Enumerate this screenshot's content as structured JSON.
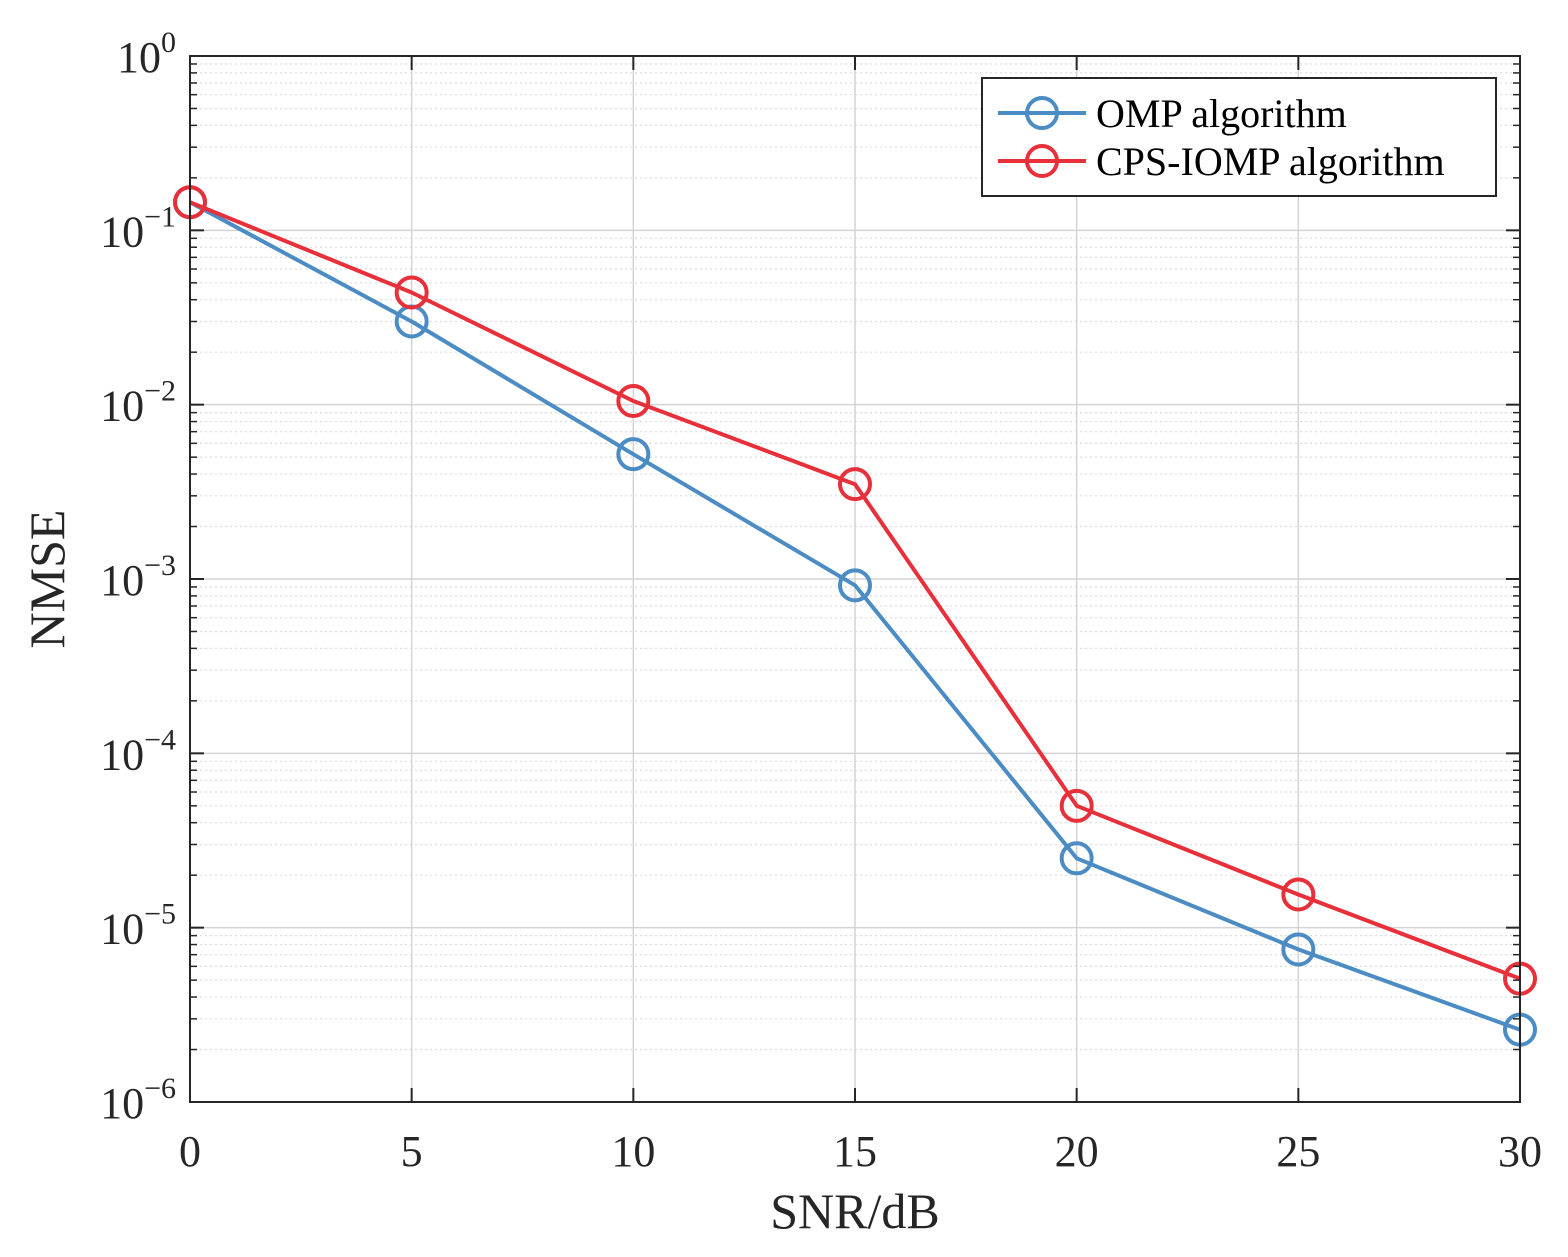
{
  "chart_data": {
    "type": "line",
    "title": "",
    "xlabel": "SNR/dB",
    "ylabel": "NMSE",
    "yscale": "log",
    "xlim": [
      0,
      30
    ],
    "ylim": [
      1e-06,
      1
    ],
    "grid": true,
    "legend_position": "top-right",
    "x_ticks": [
      0,
      5,
      10,
      15,
      20,
      25,
      30
    ],
    "x_tick_labels": [
      "0",
      "5",
      "10",
      "15",
      "20",
      "25",
      "30"
    ],
    "y_ticks": [
      {
        "value": 1e-06,
        "base": "10",
        "exp": "−6"
      },
      {
        "value": 1e-05,
        "base": "10",
        "exp": "−5"
      },
      {
        "value": 0.0001,
        "base": "10",
        "exp": "−4"
      },
      {
        "value": 0.001,
        "base": "10",
        "exp": "−3"
      },
      {
        "value": 0.01,
        "base": "10",
        "exp": "−2"
      },
      {
        "value": 0.1,
        "base": "10",
        "exp": "−1"
      },
      {
        "value": 1,
        "base": "10",
        "exp": "0"
      }
    ],
    "x": [
      0,
      5,
      10,
      15,
      20,
      25,
      30
    ],
    "series": [
      {
        "name": "OMP algorithm",
        "color": "#4C8CC4",
        "marker": "circle",
        "values": [
          0.145,
          0.03,
          0.0052,
          0.00092,
          2.5e-05,
          7.5e-06,
          2.6e-06
        ]
      },
      {
        "name": "CPS-IOMP algorithm",
        "color": "#E8303A",
        "marker": "circle",
        "values": [
          0.145,
          0.044,
          0.0105,
          0.0035,
          5e-05,
          1.55e-05,
          5.1e-06
        ]
      }
    ]
  }
}
